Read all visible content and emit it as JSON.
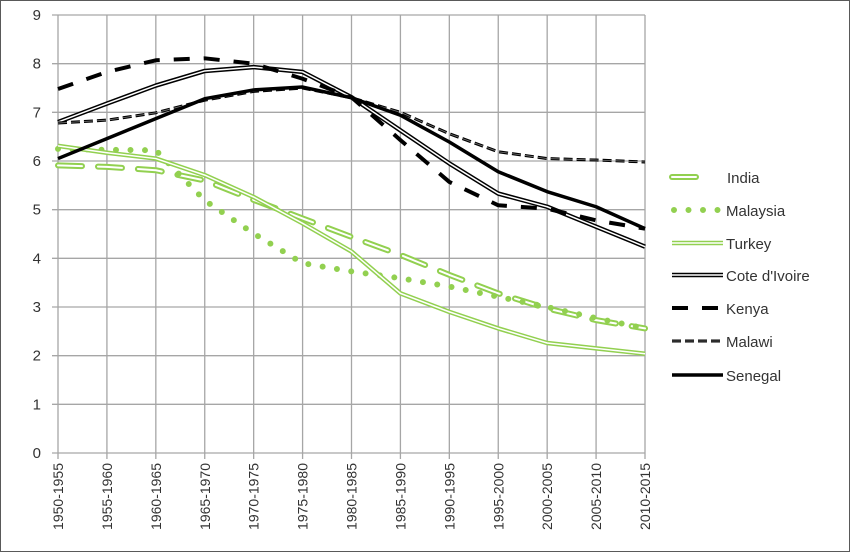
{
  "chart_data": {
    "type": "line",
    "title": "",
    "xlabel": "",
    "ylabel": "",
    "ylim": [
      0,
      9
    ],
    "yticks": [
      "0",
      "1",
      "2",
      "3",
      "4",
      "5",
      "6",
      "7",
      "8",
      "9"
    ],
    "grid": true,
    "legend_position": "right",
    "categories": [
      "1950-1955",
      "1955-1960",
      "1960-1965",
      "1965-1970",
      "1970-1975",
      "1975-1980",
      "1980-1985",
      "1985-1990",
      "1990-1995",
      "1995-2000",
      "2000-2005",
      "2005-2010",
      "2010-2015"
    ],
    "series": [
      {
        "name": "India",
        "color": "#92d050",
        "style": "double-dash",
        "values": [
          5.91,
          5.88,
          5.81,
          5.6,
          5.2,
          4.82,
          4.44,
          4.07,
          3.66,
          3.28,
          2.97,
          2.73,
          2.56
        ]
      },
      {
        "name": "Malaysia",
        "color": "#92d050",
        "style": "dot",
        "values": [
          6.25,
          6.23,
          6.22,
          5.19,
          4.51,
          3.9,
          3.73,
          3.59,
          3.42,
          3.21,
          3.0,
          2.77,
          2.56
        ]
      },
      {
        "name": "Turkey",
        "color": "#92d050",
        "style": "double",
        "values": [
          6.31,
          6.17,
          6.05,
          5.71,
          5.26,
          4.72,
          4.14,
          3.28,
          2.9,
          2.56,
          2.26,
          2.15,
          2.04
        ]
      },
      {
        "name": "Cote d'Ivoire",
        "color": "#000000",
        "style": "double",
        "values": [
          6.8,
          7.18,
          7.55,
          7.85,
          7.93,
          7.83,
          7.31,
          6.63,
          5.95,
          5.33,
          5.06,
          4.65,
          4.24
        ]
      },
      {
        "name": "Kenya",
        "color": "#000000",
        "style": "long-dash",
        "values": [
          7.48,
          7.83,
          8.07,
          8.11,
          8.0,
          7.69,
          7.31,
          6.43,
          5.57,
          5.09,
          5.02,
          4.78,
          4.61
        ]
      },
      {
        "name": "Malawi",
        "color": "#000000",
        "style": "short-dash",
        "values": [
          6.78,
          6.84,
          6.99,
          7.25,
          7.43,
          7.5,
          7.3,
          7.0,
          6.56,
          6.19,
          6.05,
          6.02,
          5.98
        ]
      },
      {
        "name": "Senegal",
        "color": "#000000",
        "style": "thick",
        "values": [
          6.05,
          6.46,
          6.87,
          7.28,
          7.46,
          7.52,
          7.3,
          6.94,
          6.39,
          5.78,
          5.37,
          5.06,
          4.61
        ]
      }
    ]
  }
}
